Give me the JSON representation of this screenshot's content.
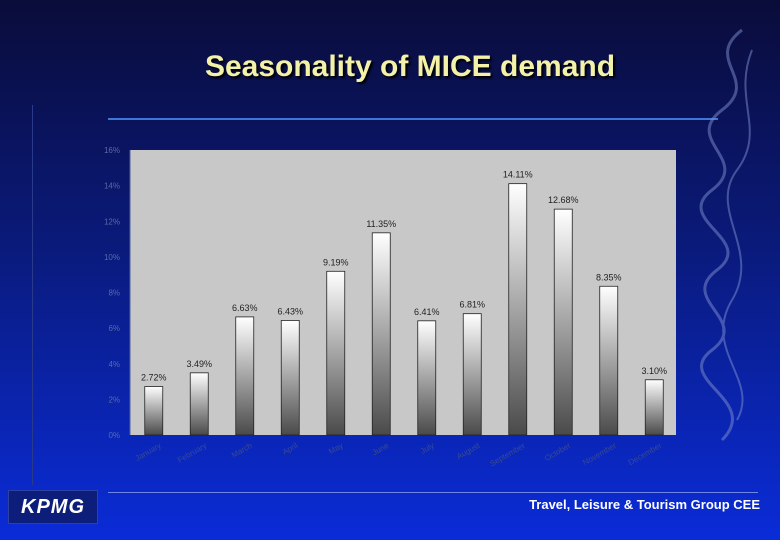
{
  "slide": {
    "title": "Seasonality of MICE demand",
    "footer": "Travel, Leisure & Tourism Group CEE",
    "logo_text": "KPMG"
  },
  "colors": {
    "title": "#f4f2a8",
    "plot_area": "#c8c8c8",
    "bar_top": "#ffffff",
    "bar_bottom": "#4a4a4a"
  },
  "chart_data": {
    "type": "bar",
    "categories": [
      "January",
      "February",
      "March",
      "April",
      "May",
      "June",
      "July",
      "August",
      "September",
      "October",
      "November",
      "December"
    ],
    "values": [
      2.72,
      3.49,
      6.63,
      6.43,
      9.19,
      11.35,
      6.41,
      6.81,
      14.11,
      12.68,
      8.35,
      3.1
    ],
    "data_labels": [
      "2.72%",
      "3.49%",
      "6.63%",
      "6.43%",
      "9.19%",
      "11.35%",
      "6.41%",
      "6.81%",
      "14.11%",
      "12.68%",
      "8.35%",
      "3.10%"
    ],
    "y_ticks": [
      "0%",
      "2%",
      "4%",
      "6%",
      "8%",
      "10%",
      "12%",
      "14%",
      "16%"
    ],
    "ylim": [
      0,
      16
    ],
    "legend": false,
    "title": "",
    "xlabel": "",
    "ylabel": ""
  }
}
